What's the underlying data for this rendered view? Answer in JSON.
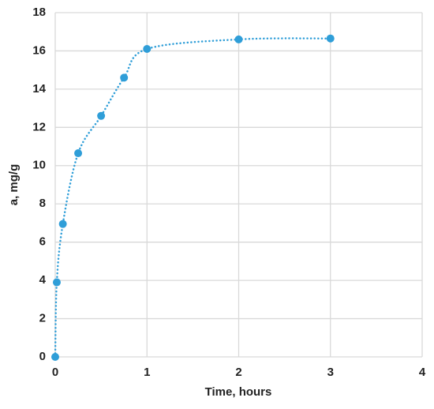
{
  "chart_data": {
    "type": "scatter",
    "x_label": "Time, hours",
    "y_label": "a, mg/g",
    "series": [
      {
        "color": "#2f9ed8",
        "x": [
          0,
          0.017,
          0.083,
          0.25,
          0.5,
          0.75,
          1,
          2,
          3
        ],
        "values": [
          0,
          3.9,
          6.95,
          10.65,
          12.6,
          14.6,
          16.1,
          16.6,
          16.65
        ]
      }
    ],
    "xlim": [
      0,
      4
    ],
    "xticks": [
      0,
      1,
      2,
      3,
      4
    ],
    "ylim": [
      0,
      18
    ],
    "yticks": [
      0,
      2,
      4,
      6,
      8,
      10,
      12,
      14,
      16,
      18
    ],
    "grid": true,
    "line_style": "dotted",
    "smooth": true
  }
}
